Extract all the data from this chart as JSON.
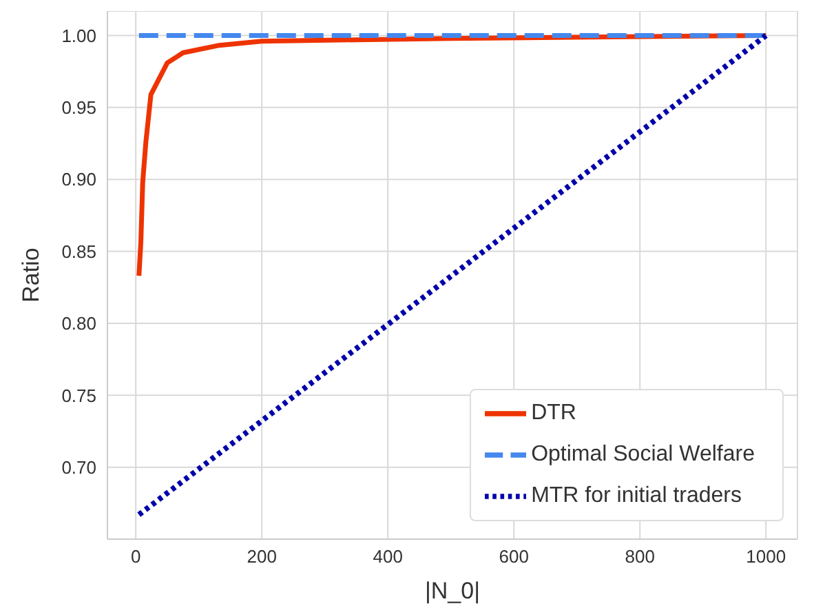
{
  "chart_data": {
    "type": "line",
    "xlabel": "|N_0|",
    "ylabel": "Ratio",
    "xlim": [
      -45,
      1050
    ],
    "xticks": [
      0,
      200,
      400,
      600,
      800,
      1000
    ],
    "ylim": [
      0.65,
      1.017
    ],
    "yticks": [
      {
        "value": 0.7,
        "label": "0.70"
      },
      {
        "value": 0.75,
        "label": "0.75"
      },
      {
        "value": 0.8,
        "label": "0.80"
      },
      {
        "value": 0.85,
        "label": "0.85"
      },
      {
        "value": 0.9,
        "label": "0.90"
      },
      {
        "value": 0.95,
        "label": "0.95"
      },
      {
        "value": 1.0,
        "label": "1.00"
      }
    ],
    "grid": true,
    "legend": "bottom right",
    "marker": "none",
    "series": [
      {
        "name": "DTR",
        "color": "#ee3300",
        "line_style": "solid",
        "x": [
          5,
          8,
          11,
          16,
          24,
          50,
          75,
          130,
          200,
          350,
          500,
          750,
          1000
        ],
        "values": [
          0.833,
          0.856,
          0.898,
          0.926,
          0.959,
          0.981,
          0.988,
          0.993,
          0.996,
          0.997,
          0.998,
          0.999,
          1.0
        ]
      },
      {
        "name": "Optimal Social Welfare",
        "color": "#4488ee",
        "line_style": "dashed",
        "x": [
          5,
          1000
        ],
        "values": [
          1.0,
          1.0
        ]
      },
      {
        "name": "MTR for initial traders",
        "color": "#0000aa",
        "line_style": "dotted",
        "x": [
          5,
          1000
        ],
        "values": [
          0.667,
          1.0
        ]
      }
    ]
  }
}
